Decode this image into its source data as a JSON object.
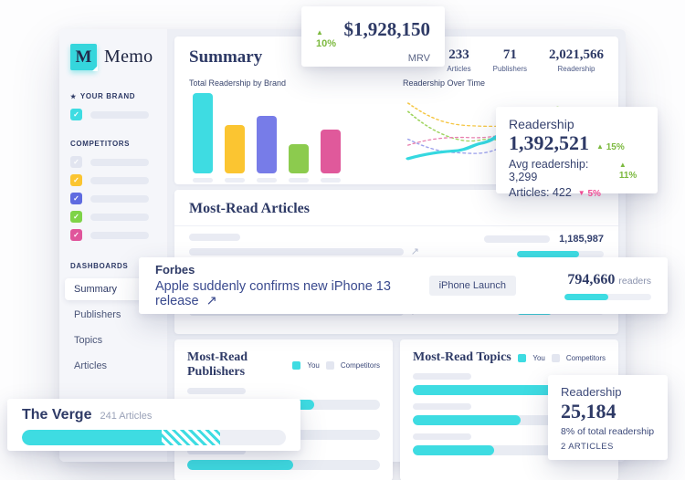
{
  "colors": {
    "accent_cyan": "#3EDCE2",
    "legend_gray": "#E3E6F0",
    "navy": "#2E3A66",
    "trend_up": "#7CB93F",
    "trend_down": "#EE4B94"
  },
  "icons": {
    "check": "✓",
    "star": "★",
    "external_link": "↗",
    "trend_up": "▲",
    "trend_down": "▼"
  },
  "sidebar": {
    "logo_letter": "M",
    "brand": "Memo",
    "your_brand_label": "YOUR BRAND",
    "competitors_label": "COMPETITORS",
    "dashboards_label": "DASHBOARDS",
    "brand_checkbox_color": "#3EDCE2",
    "competitor_colors": [
      "#E2E5F0",
      "#FBC531",
      "#5F6BE0",
      "#7ED348",
      "#E0559B"
    ],
    "nav": [
      {
        "label": "Summary"
      },
      {
        "label": "Publishers"
      },
      {
        "label": "Topics"
      },
      {
        "label": "Articles"
      }
    ]
  },
  "summary": {
    "title": "Summary",
    "stats": [
      {
        "value": "233",
        "label": "Articles"
      },
      {
        "value": "71",
        "label": "Publishers"
      },
      {
        "value": "2,021,566",
        "label": "Readership"
      }
    ]
  },
  "chart_data": [
    {
      "type": "bar",
      "title": "Total Readership by Brand",
      "categories": [
        "Your brand",
        "Competitor 1",
        "Competitor 2",
        "Competitor 3",
        "Competitor 4"
      ],
      "values": [
        100,
        60,
        72,
        36,
        54
      ],
      "colors": [
        "#3EDCE2",
        "#FBC531",
        "#777CE8",
        "#8CCB4E",
        "#E0599B"
      ],
      "xlabel": "",
      "ylabel": "",
      "grid": false,
      "note": "relative bar heights in % of tallest bar; category labels shown only as placeholder bars"
    },
    {
      "type": "line",
      "title": "Readership Over Time",
      "series": [
        {
          "name": "You",
          "color": "#35D8E0",
          "style": "solid-thick"
        },
        {
          "name": "Competitor yellow",
          "color": "#F5C643",
          "style": "dotted"
        },
        {
          "name": "Competitor green",
          "color": "#9FD45E",
          "style": "dotted"
        },
        {
          "name": "Competitor pink",
          "color": "#E87FAE",
          "style": "dotted"
        },
        {
          "name": "Competitor purple",
          "color": "#9BA0EC",
          "style": "dotted"
        }
      ],
      "note": "sparkline-style curves, no axes or tick labels shown"
    }
  ],
  "mrv_card": {
    "trend": "10%",
    "value": "$1,928,150",
    "label": "MRV"
  },
  "readership_card": {
    "title": "Readership",
    "value": "1,392,521",
    "value_trend": "15%",
    "avg_label": "Avg readership: 3,299",
    "avg_trend": "11%",
    "articles_label": "Articles: 422",
    "articles_trend": "5%"
  },
  "articles_section": {
    "title": "Most-Read Articles",
    "rows": [
      {
        "value": "1,185,987",
        "fill": 72
      },
      {
        "fill": 55
      },
      {
        "fill": 40
      }
    ]
  },
  "article_card": {
    "publisher": "Forbes",
    "headline": "Apple suddenly confirms new iPhone 13 release",
    "tag": "iPhone Launch",
    "value": "794,660",
    "value_unit": "readers",
    "fill": 50
  },
  "publishers_section": {
    "title": "Most-Read Publishers",
    "legend": {
      "you": "You",
      "competitors": "Competitors"
    },
    "rows": [
      {
        "fill": 66
      },
      {
        "fill": 45
      },
      {
        "fill": 55
      }
    ]
  },
  "topics_section": {
    "title": "Most-Read Topics",
    "legend": {
      "you": "You",
      "competitors": "Competitors"
    },
    "rows": [
      {
        "fill": 76
      },
      {
        "fill": 56
      },
      {
        "fill": 42
      }
    ]
  },
  "publisher_card": {
    "name": "The Verge",
    "meta": "241 Articles",
    "solid_fill": 53,
    "hatch_fill": 22
  },
  "topic_card": {
    "title": "Readership",
    "value": "25,184",
    "share": "8% of total readership",
    "articles": "2 ARTICLES"
  }
}
